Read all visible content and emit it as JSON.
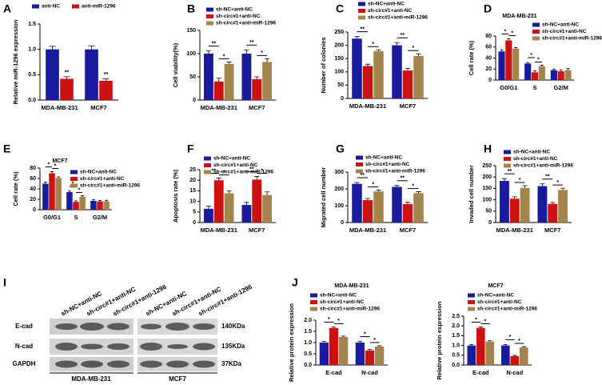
{
  "chart_data": [
    {
      "type": "bar",
      "panel": "A",
      "ylabel": "Relative miR-1296 expression",
      "categories": [
        "MDA-MB-231",
        "MCF7"
      ],
      "series": [
        {
          "name": "anti-NC",
          "color": "#1a1a9c",
          "values": [
            1.0,
            1.0
          ],
          "errors": [
            0.06,
            0.07
          ]
        },
        {
          "name": "anti-miR-1296",
          "color": "#cc1111",
          "values": [
            0.42,
            0.38
          ],
          "errors": [
            0.04,
            0.04
          ]
        }
      ],
      "ylim": [
        0,
        1.5
      ],
      "yticks": [
        {
          "value": 0,
          "label": "0.0"
        },
        {
          "value": 0.5,
          "label": "0.5"
        },
        {
          "value": 1.0,
          "label": "1.0"
        },
        {
          "value": 1.5,
          "label": "1.5"
        }
      ],
      "annotations": [
        "**",
        "**"
      ]
    },
    {
      "type": "bar",
      "panel": "B",
      "ylabel": "Cell viability(%)",
      "categories": [
        "MDA-MB-231",
        "MCF7"
      ],
      "series": [
        {
          "name": "sh-NC+anti-NC",
          "color": "#1a1a9c",
          "values": [
            100,
            100
          ],
          "errors": [
            6,
            8
          ]
        },
        {
          "name": "sh-circ#1+anti-NC",
          "color": "#cc1111",
          "values": [
            40,
            45
          ],
          "errors": [
            7,
            5
          ]
        },
        {
          "name": "sh-circ#1+anti-miR-1296",
          "color": "#a4844c",
          "values": [
            78,
            82
          ],
          "errors": [
            4,
            7
          ]
        }
      ],
      "ylim": [
        0,
        150
      ],
      "yticks": [
        0,
        50,
        100,
        150
      ],
      "annotations": [
        [
          "**",
          "*"
        ],
        [
          "**",
          "*"
        ]
      ]
    },
    {
      "type": "bar",
      "panel": "C",
      "ylabel": "Number of colonies",
      "categories": [
        "MDA-MB-231",
        "MCF7"
      ],
      "series": [
        {
          "name": "sh-NC+anti-NC",
          "color": "#1a1a9c",
          "values": [
            225,
            200
          ],
          "errors": [
            8,
            10
          ]
        },
        {
          "name": "sh-circ#1+anti-NC",
          "color": "#cc1111",
          "values": [
            122,
            105
          ],
          "errors": [
            7,
            8
          ]
        },
        {
          "name": "sh-circ#1+anti-miR-1296",
          "color": "#a4844c",
          "values": [
            178,
            160
          ],
          "errors": [
            5,
            8
          ]
        }
      ],
      "ylim": [
        0,
        250
      ],
      "yticks": [
        0,
        50,
        100,
        150,
        200,
        250
      ],
      "annotations": [
        [
          "**",
          "*"
        ],
        [
          "**",
          "*"
        ]
      ]
    },
    {
      "type": "bar",
      "panel": "D",
      "title": "MDA-MB-231",
      "ylabel": "Cell rate (%)",
      "categories": [
        "G0/G1",
        "S",
        "G2/M"
      ],
      "series": [
        {
          "name": "sh-NC+anti-NC",
          "color": "#1a1a9c",
          "values": [
            52,
            30,
            18
          ],
          "errors": [
            3,
            2,
            2
          ]
        },
        {
          "name": "sh-circ#1+anti-NC",
          "color": "#cc1111",
          "values": [
            72,
            14,
            16
          ],
          "errors": [
            3,
            3,
            2
          ]
        },
        {
          "name": "sh-circ#1+anti-miR-1296",
          "color": "#a4844c",
          "values": [
            57,
            25,
            18
          ],
          "errors": [
            2,
            2,
            3
          ]
        }
      ],
      "ylim": [
        0,
        80
      ],
      "yticks": [
        0,
        20,
        40,
        60,
        80
      ],
      "annotations": [
        [
          "*",
          "*"
        ],
        [
          "*",
          "*"
        ],
        []
      ]
    },
    {
      "type": "bar",
      "panel": "E",
      "title": "MCF7",
      "ylabel": "Cell rate (%)",
      "categories": [
        "G0/G1",
        "S",
        "G2/M"
      ],
      "series": [
        {
          "name": "sh-NC+anti-NC",
          "color": "#1a1a9c",
          "values": [
            50,
            34,
            17
          ],
          "errors": [
            3,
            2,
            2
          ]
        },
        {
          "name": "sh-circ#1+anti-NC",
          "color": "#cc1111",
          "values": [
            70,
            15,
            16
          ],
          "errors": [
            3,
            2,
            2
          ]
        },
        {
          "name": "sh-circ#1+anti-miR-1296",
          "color": "#a4844c",
          "values": [
            61,
            25,
            16
          ],
          "errors": [
            2,
            2,
            2
          ]
        }
      ],
      "ylim": [
        0,
        80
      ],
      "yticks": [
        0,
        20,
        40,
        60,
        80
      ],
      "annotations": [
        [
          "*",
          "*"
        ],
        [
          "*",
          "*"
        ],
        []
      ]
    },
    {
      "type": "bar",
      "panel": "F",
      "ylabel": "Apoptosis rate (%)",
      "categories": [
        "MDA-MB-231",
        "MCF7"
      ],
      "series": [
        {
          "name": "sh-NC+anti-NC",
          "color": "#1a1a9c",
          "values": [
            6.5,
            8.3
          ],
          "errors": [
            1.2,
            1.2
          ]
        },
        {
          "name": "sh-circ#1+anti-NC",
          "color": "#cc1111",
          "values": [
            20,
            20.3
          ],
          "errors": [
            1.0,
            1.5
          ]
        },
        {
          "name": "sh-circ#1+anti-miR-1296",
          "color": "#a4844c",
          "values": [
            13.8,
            13
          ],
          "errors": [
            1.2,
            1.5
          ]
        }
      ],
      "ylim": [
        0,
        25
      ],
      "yticks": [
        0,
        5,
        10,
        15,
        20,
        25
      ],
      "annotations": [
        [
          "**",
          "*"
        ],
        [
          "**",
          "*"
        ]
      ]
    },
    {
      "type": "bar",
      "panel": "G",
      "ylabel": "Migrated cell number",
      "categories": [
        "MDA-MB-231",
        "MCF7"
      ],
      "series": [
        {
          "name": "sh-NC+anti-NC",
          "color": "#1a1a9c",
          "values": [
            230,
            212
          ],
          "errors": [
            8,
            8
          ]
        },
        {
          "name": "sh-circ#1+anti-NC",
          "color": "#cc1111",
          "values": [
            133,
            110
          ],
          "errors": [
            10,
            10
          ]
        },
        {
          "name": "sh-circ#1+anti-miR-1296",
          "color": "#a4844c",
          "values": [
            185,
            175
          ],
          "errors": [
            8,
            8
          ]
        }
      ],
      "ylim": [
        0,
        300
      ],
      "yticks": [
        0,
        100,
        200,
        300
      ],
      "annotations": [
        [
          "**",
          "*"
        ],
        [
          "**",
          "*"
        ]
      ]
    },
    {
      "type": "bar",
      "panel": "H",
      "ylabel": "Invaded cell number",
      "categories": [
        "MDA-MB-231",
        "MCF7"
      ],
      "series": [
        {
          "name": "sh-NC+anti-NC",
          "color": "#1a1a9c",
          "values": [
            183,
            160
          ],
          "errors": [
            10,
            10
          ]
        },
        {
          "name": "sh-circ#1+anti-NC",
          "color": "#cc1111",
          "values": [
            105,
            82
          ],
          "errors": [
            8,
            6
          ]
        },
        {
          "name": "sh-circ#1+anti-miR-1296",
          "color": "#a4844c",
          "values": [
            152,
            143
          ],
          "errors": [
            10,
            8
          ]
        }
      ],
      "ylim": [
        0,
        250
      ],
      "yticks": [
        0,
        50,
        100,
        150,
        200,
        250
      ],
      "annotations": [
        [
          "**",
          "*"
        ],
        [
          "**",
          "*"
        ]
      ]
    },
    {
      "type": "bar",
      "panel": "J",
      "title": "MDA-MB-231",
      "ylabel": "Relative protein expression",
      "categories": [
        "E-cad",
        "N-cad"
      ],
      "series": [
        {
          "name": "sh-NC+anti-NC",
          "color": "#1a1a9c",
          "values": [
            1.0,
            1.0
          ],
          "errors": [
            0.05,
            0.05
          ]
        },
        {
          "name": "sh-circ#1+anti-NC",
          "color": "#cc1111",
          "values": [
            1.65,
            0.65
          ],
          "errors": [
            0.05,
            0.05
          ]
        },
        {
          "name": "sh-circ#1+anti-miR-1296",
          "color": "#a4844c",
          "values": [
            1.25,
            0.82
          ],
          "errors": [
            0.04,
            0.04
          ]
        }
      ],
      "ylim": [
        0,
        2.0
      ],
      "yticks": [
        {
          "value": 0,
          "label": "0.0"
        },
        {
          "value": 0.5,
          "label": "0.5"
        },
        {
          "value": 1.0,
          "label": "1.0"
        },
        {
          "value": 1.5,
          "label": "1.5"
        },
        {
          "value": 2.0,
          "label": "2.0"
        }
      ],
      "annotations": [
        [
          "*",
          "*"
        ],
        [
          "*",
          "*"
        ]
      ]
    },
    {
      "type": "bar",
      "title": "MCF7",
      "ylabel": "Relative protein expression",
      "categories": [
        "E-cad",
        "N-cad"
      ],
      "series": [
        {
          "name": "sh-NC+anti-NC",
          "color": "#1a1a9c",
          "values": [
            1.0,
            1.0
          ],
          "errors": [
            0.05,
            0.05
          ]
        },
        {
          "name": "sh-circ#1+anti-NC",
          "color": "#cc1111",
          "values": [
            1.9,
            0.45
          ],
          "errors": [
            0.05,
            0.04
          ]
        },
        {
          "name": "sh-circ#1+anti-miR-1296",
          "color": "#a4844c",
          "values": [
            1.2,
            0.9
          ],
          "errors": [
            0.04,
            0.04
          ]
        }
      ],
      "ylim": [
        0,
        2.5
      ],
      "yticks": [
        {
          "value": 0,
          "label": "0.0"
        },
        {
          "value": 0.5,
          "label": "0.5"
        },
        {
          "value": 1.0,
          "label": "1.0"
        },
        {
          "value": 1.5,
          "label": "1.5"
        },
        {
          "value": 2.0,
          "label": "2.0"
        },
        {
          "value": 2.5,
          "label": "2.5"
        }
      ],
      "annotations": [
        [
          "*",
          "*"
        ],
        [
          "*",
          "*"
        ]
      ]
    }
  ],
  "western_blot": {
    "panel": "I",
    "lanes": [
      "sh-NC+anti-NC",
      "sh-circ#1+anti-NC",
      "sh-circ#1+anti-1296",
      "sh-NC+anti-NC",
      "sh-circ#1+anti-NC",
      "sh-circ#1+anti-1296"
    ],
    "bands": [
      "E-cad",
      "N-cad",
      "GAPDH"
    ],
    "sizes": [
      "140KDa",
      "135KDa",
      "37KDa"
    ],
    "cell_lines": [
      "MDA-MB-231",
      "MCF7"
    ]
  }
}
